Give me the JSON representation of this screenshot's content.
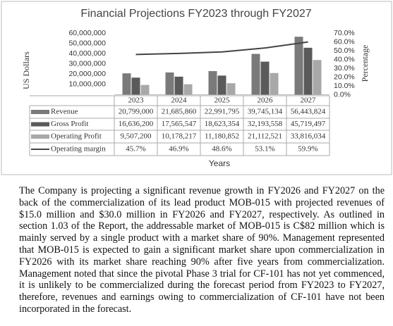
{
  "chart_data": {
    "type": "bar",
    "title": "Financial Projections FY2023 through FY2027",
    "y_label": "US Dollars",
    "y2_label": "Percentage",
    "x_label": "Years",
    "categories": [
      "2023",
      "2024",
      "2025",
      "2026",
      "2027"
    ],
    "series": [
      {
        "name": "Revenue",
        "color": "#7a7a7a",
        "values": [
          20799000,
          21685860,
          22991795,
          39745134,
          56443824
        ],
        "value_labels": [
          "20,799,000",
          "21,685,860",
          "22,991,795",
          "39,745,134",
          "56,443,824"
        ]
      },
      {
        "name": "Gross Profit",
        "color": "#5a5a5a",
        "values": [
          16636200,
          17565547,
          18623354,
          32193558,
          45719497
        ],
        "value_labels": [
          "16,636,200",
          "17,565,547",
          "18,623,354",
          "32,193,558",
          "45,719,497"
        ]
      },
      {
        "name": "Operating Profit",
        "color": "#a8a8a8",
        "values": [
          9507200,
          10178217,
          11180852,
          21112521,
          33816034
        ],
        "value_labels": [
          "9,507,200",
          "10,178,217",
          "11,180,852",
          "21,112,521",
          "33,816,034"
        ]
      },
      {
        "name": "Operating margin",
        "type": "line",
        "axis": "y2",
        "color": "#444444",
        "values": [
          45.7,
          46.9,
          48.6,
          53.1,
          59.9
        ],
        "value_labels": [
          "45.7%",
          "46.9%",
          "48.6%",
          "53.1%",
          "59.9%"
        ]
      }
    ],
    "ylim": [
      0,
      60000000
    ],
    "yticks": [
      {
        "value": 10000000,
        "label": "10,000,000"
      },
      {
        "value": 20000000,
        "label": "20,000,000"
      },
      {
        "value": 30000000,
        "label": "30,000,000"
      },
      {
        "value": 40000000,
        "label": "40,000,000"
      },
      {
        "value": 50000000,
        "label": "50,000,000"
      },
      {
        "value": 60000000,
        "label": "60,000,000"
      }
    ],
    "y2lim": [
      0,
      70
    ],
    "y2ticks": [
      {
        "value": 0,
        "label": "0.0%"
      },
      {
        "value": 10,
        "label": "10.0%"
      },
      {
        "value": 20,
        "label": "20.0%"
      },
      {
        "value": 30,
        "label": "30.0%"
      },
      {
        "value": 40,
        "label": "40.0%"
      },
      {
        "value": 50,
        "label": "50.0%"
      },
      {
        "value": 60,
        "label": "60.0%"
      },
      {
        "value": 70,
        "label": "70.0%"
      }
    ]
  },
  "paragraph": "The Company is projecting a significant revenue growth in FY2026 and FY2027 on the back of the commercialization of its lead product MOB-015 with projected revenues of $15.0 million and $30.0 million in FY2026 and FY2027, respectively. As outlined in section 1.03 of the Report, the addressable market of MOB-015 is C$82 million which is mainly served by a single product with a market share of 90%. Management represented that MOB-015 is expected to gain a significant market share upon commercialization in FY2026 with its market share reaching 90% after five years from commercialization. Management noted that since the pivotal Phase 3 trial for CF-101 has not yet commenced, it is unlikely to be commercialized during the forecast period from FY2023 to FY2027, therefore, revenues and earnings owing to commercialization of CF-101 have not been incorporated in the forecast."
}
